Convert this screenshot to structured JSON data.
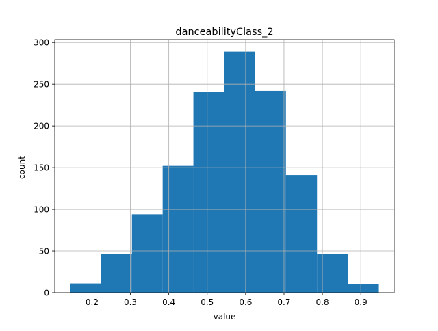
{
  "chart_data": {
    "type": "bar",
    "title": "danceabilityClass_2",
    "xlabel": "value",
    "ylabel": "count",
    "bins": [
      [
        0.143,
        0.223
      ],
      [
        0.223,
        0.304
      ],
      [
        0.304,
        0.384
      ],
      [
        0.384,
        0.464
      ],
      [
        0.464,
        0.545
      ],
      [
        0.545,
        0.625
      ],
      [
        0.625,
        0.705
      ],
      [
        0.705,
        0.786
      ],
      [
        0.786,
        0.866
      ],
      [
        0.866,
        0.947
      ]
    ],
    "values": [
      11,
      46,
      94,
      152,
      241,
      289,
      242,
      141,
      46,
      10
    ],
    "xlim": [
      0.103,
      0.987
    ],
    "ylim": [
      0,
      303.45
    ],
    "xticks": [
      0.2,
      0.3,
      0.4,
      0.5,
      0.6,
      0.7,
      0.8,
      0.9
    ],
    "xtick_labels": [
      "0.2",
      "0.3",
      "0.4",
      "0.5",
      "0.6",
      "0.7",
      "0.8",
      "0.9"
    ],
    "yticks": [
      0,
      50,
      100,
      150,
      200,
      250,
      300
    ],
    "ytick_labels": [
      "0",
      "50",
      "100",
      "150",
      "200",
      "250",
      "300"
    ],
    "grid": true,
    "bar_color": "#1f77b4",
    "grid_color": "#b0b0b0"
  }
}
